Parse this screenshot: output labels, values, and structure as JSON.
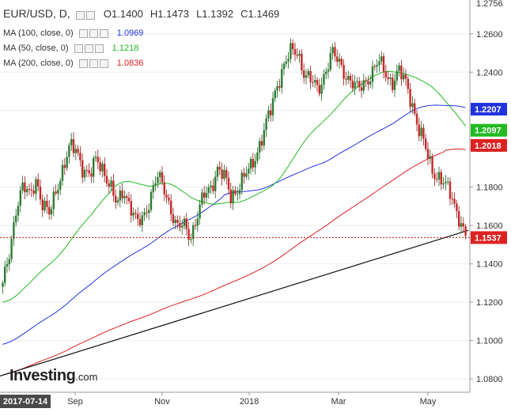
{
  "header": {
    "symbol": "EUR/USD, D,",
    "open": "O1.1400",
    "high": "H1.1473",
    "low": "L1.1392",
    "close": "C1.1469"
  },
  "indicators": [
    {
      "label": "MA (100, close, 0)",
      "value": "1.0969",
      "color": "#2233dd"
    },
    {
      "label": "MA (50, close, 0)",
      "value": "1.1218",
      "color": "#22bb22"
    },
    {
      "label": "MA (200, close, 0)",
      "value": "1.0836",
      "color": "#dd2222"
    }
  ],
  "logo": {
    "bold": "Investing",
    "suffix": ".com"
  },
  "chart_data": {
    "type": "candlestick",
    "ylim": [
      1.073,
      1.2756
    ],
    "y_ticks": [
      "1.2600",
      "1.2400",
      "1.2200",
      "1.2000",
      "1.1800",
      "1.1600",
      "1.1400",
      "1.1200",
      "1.1000",
      "1.0800"
    ],
    "y_top_label": "1.2756",
    "x_labels": [
      "2017-07-14",
      "Sep",
      "Nov",
      "2018",
      "Mar",
      "May"
    ],
    "price_tags": [
      {
        "label": "1.2207",
        "value": 1.2207,
        "color": "#2233dd"
      },
      {
        "label": "1.2097",
        "value": 1.2097,
        "color": "#22bb22"
      },
      {
        "label": "1.2018",
        "value": 1.2018,
        "color": "#dd2222"
      },
      {
        "label": "1.1537",
        "value": 1.1537,
        "color": "#dd2222"
      }
    ],
    "current_price": 1.1537,
    "trendline": {
      "from": 1.0815,
      "to": 1.1575
    },
    "anchors": [
      1.128,
      1.145,
      1.17,
      1.18,
      1.175,
      1.185,
      1.17,
      1.165,
      1.18,
      1.19,
      1.2,
      1.2,
      1.19,
      1.185,
      1.195,
      1.19,
      1.18,
      1.17,
      1.18,
      1.17,
      1.16,
      1.165,
      1.175,
      1.185,
      1.18,
      1.17,
      1.158,
      1.16,
      1.155,
      1.165,
      1.175,
      1.18,
      1.19,
      1.185,
      1.175,
      1.18,
      1.185,
      1.19,
      1.2,
      1.21,
      1.22,
      1.235,
      1.245,
      1.25,
      1.25,
      1.24,
      1.235,
      1.23,
      1.24,
      1.25,
      1.245,
      1.24,
      1.235,
      1.23,
      1.235,
      1.24,
      1.245,
      1.24,
      1.235,
      1.24,
      1.235,
      1.225,
      1.21,
      1.2,
      1.19,
      1.185,
      1.18,
      1.175,
      1.165,
      1.153
    ]
  }
}
